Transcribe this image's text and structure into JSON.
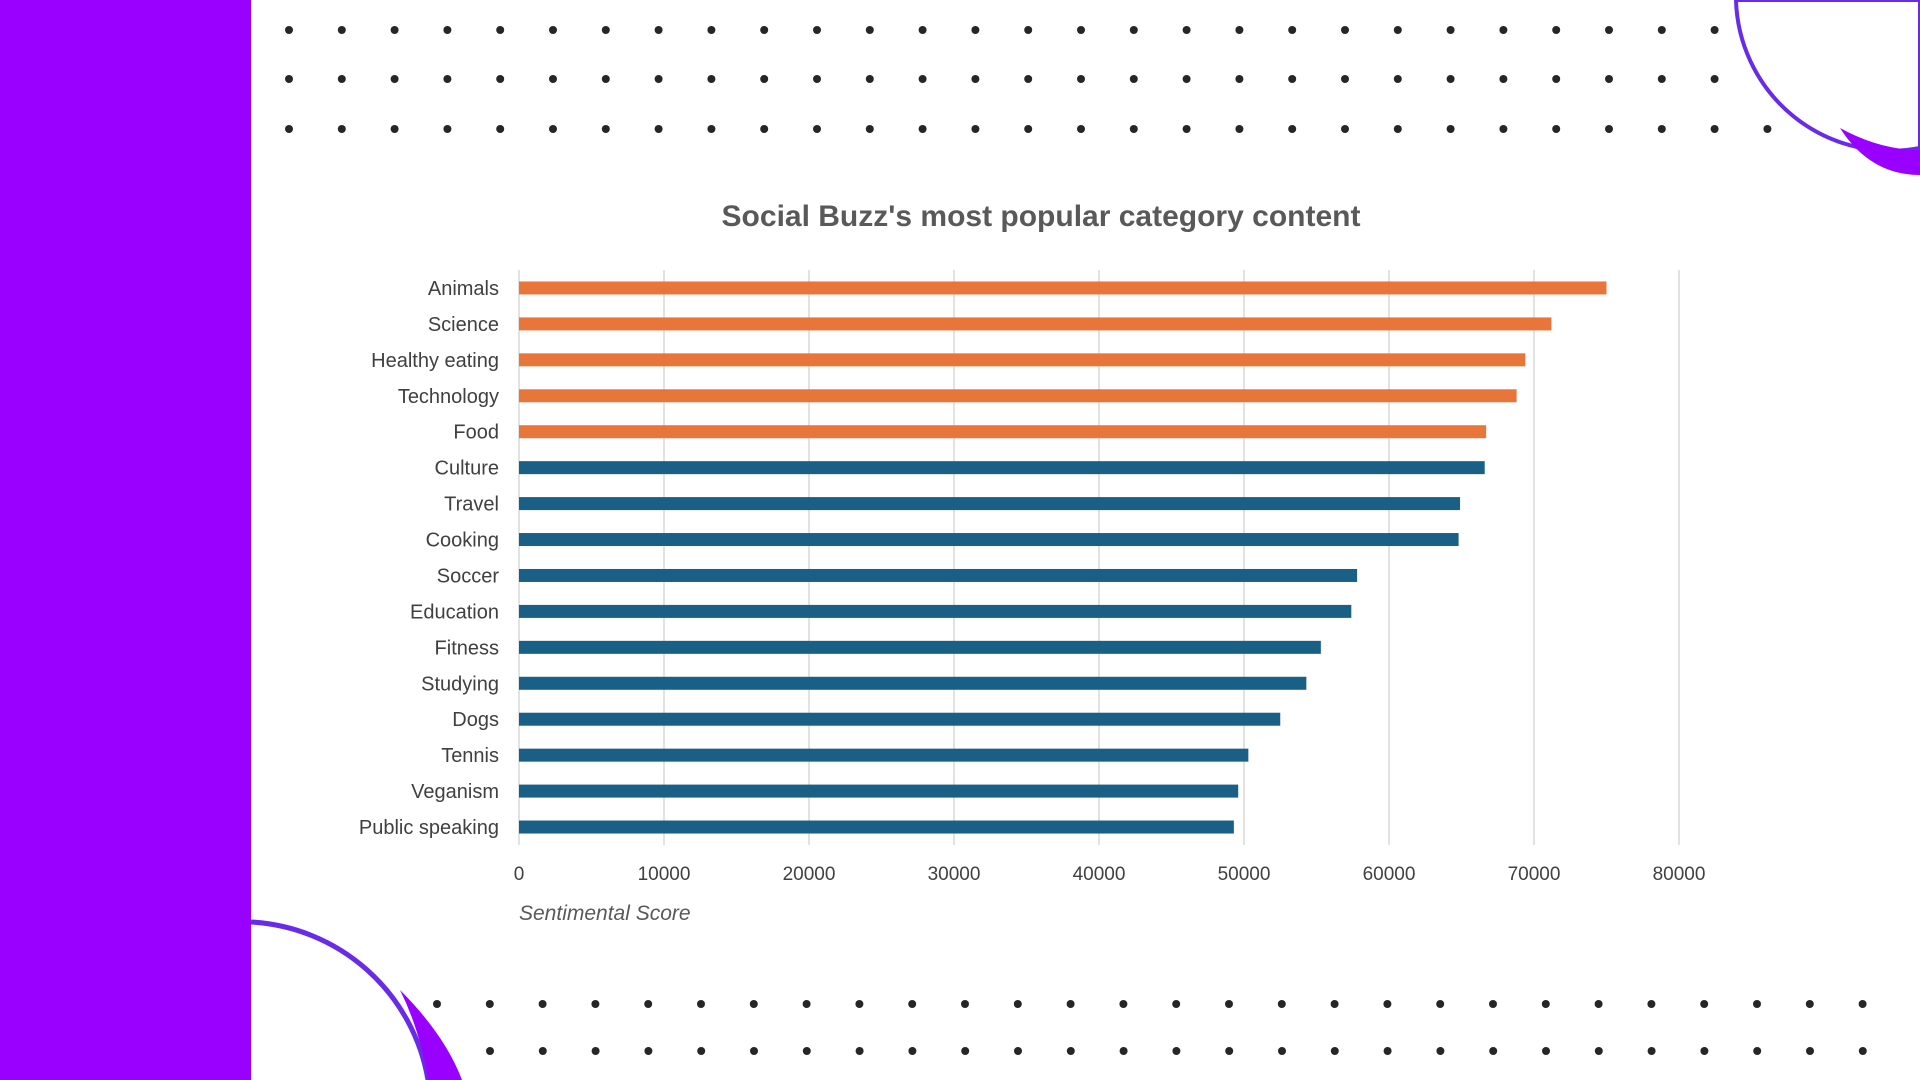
{
  "colors": {
    "accent_band": "#9900ff",
    "arc": "#6a2be8",
    "highlight_bar": "#e8753a",
    "base_bar": "#1a5f85",
    "dots": "#262626",
    "grid": "#d9d9d9"
  },
  "chart_data": {
    "type": "bar",
    "orientation": "horizontal",
    "title": "Social Buzz's most popular category content",
    "xlabel": "Sentimental Score",
    "ylabel": "",
    "xlim": [
      0,
      80000
    ],
    "xticks": [
      "0",
      "10000",
      "20000",
      "30000",
      "40000",
      "50000",
      "60000",
      "70000",
      "80000"
    ],
    "grid": "vertical",
    "categories": [
      "Animals",
      "Science",
      "Healthy eating",
      "Technology",
      "Food",
      "Culture",
      "Travel",
      "Cooking",
      "Soccer",
      "Education",
      "Fitness",
      "Studying",
      "Dogs",
      "Tennis",
      "Veganism",
      "Public speaking"
    ],
    "values": [
      75000,
      71200,
      69400,
      68800,
      66700,
      66600,
      64900,
      64800,
      57800,
      57400,
      55300,
      54300,
      52500,
      50300,
      49600,
      49300
    ],
    "highlight_top": 5
  }
}
